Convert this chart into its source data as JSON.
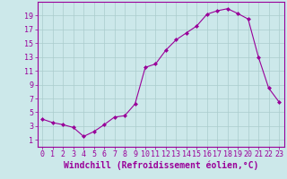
{
  "hours": [
    0,
    1,
    2,
    3,
    4,
    5,
    6,
    7,
    8,
    9,
    10,
    11,
    12,
    13,
    14,
    15,
    16,
    17,
    18,
    19,
    20,
    21,
    22,
    23
  ],
  "values": [
    4.0,
    3.5,
    3.2,
    2.8,
    1.5,
    2.2,
    3.2,
    4.3,
    4.5,
    6.2,
    11.5,
    12.0,
    14.0,
    15.5,
    16.5,
    17.5,
    19.2,
    19.7,
    20.0,
    19.3,
    18.5,
    13.0,
    8.5,
    6.5
  ],
  "line_color": "#990099",
  "marker": "D",
  "marker_size": 2,
  "bg_color": "#cce8ea",
  "grid_color": "#aacccc",
  "axis_color": "#990099",
  "xlabel": "Windchill (Refroidissement éolien,°C)",
  "xlabel_fontsize": 7,
  "tick_fontsize": 6,
  "ylim": [
    0,
    21
  ],
  "xlim": [
    -0.5,
    23.5
  ],
  "yticks": [
    1,
    3,
    5,
    7,
    9,
    11,
    13,
    15,
    17,
    19
  ],
  "xticks": [
    0,
    1,
    2,
    3,
    4,
    5,
    6,
    7,
    8,
    9,
    10,
    11,
    12,
    13,
    14,
    15,
    16,
    17,
    18,
    19,
    20,
    21,
    22,
    23
  ]
}
